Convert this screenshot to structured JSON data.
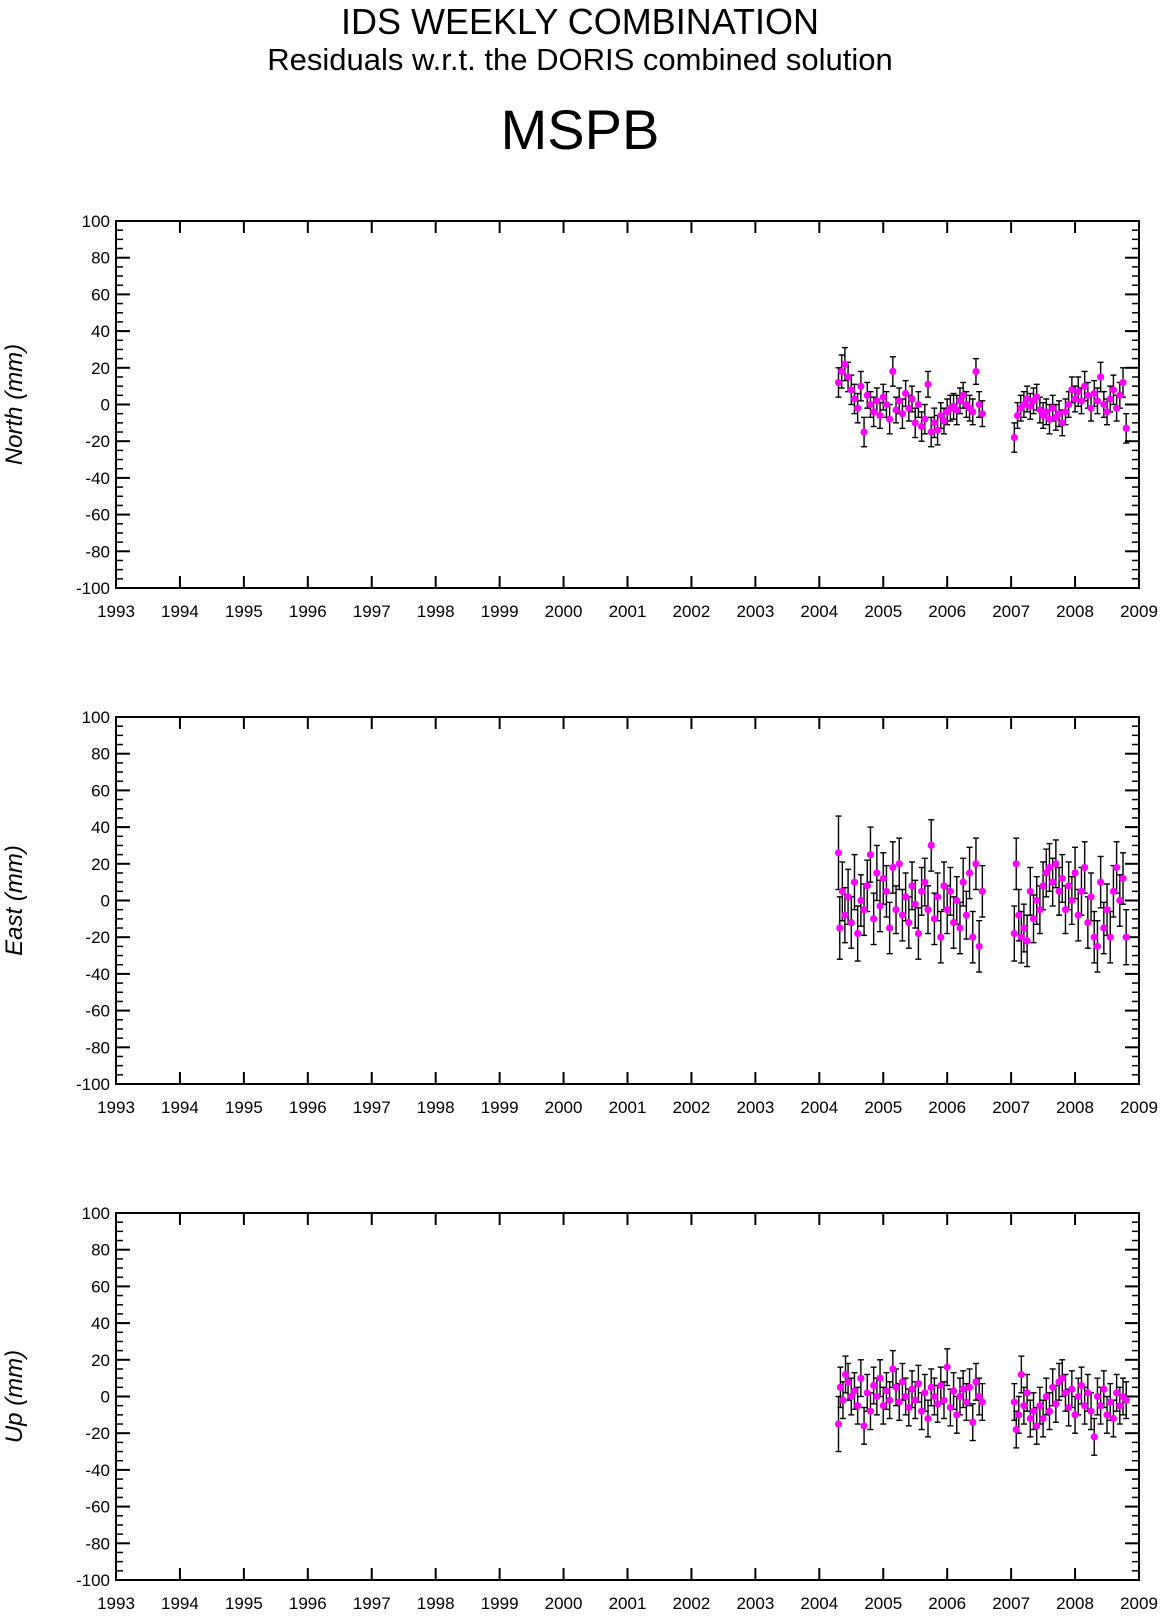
{
  "header": {
    "title": "IDS WEEKLY COMBINATION",
    "subtitle": "Residuals w.r.t. the DORIS combined solution",
    "station": "MSPB"
  },
  "colors": {
    "marker": "#ff00ff",
    "error_bar": "#000000",
    "frame": "#000000"
  },
  "chart_data": [
    {
      "type": "scatter",
      "ylabel": "North (mm)",
      "xlim": [
        1993,
        2009
      ],
      "ylim": [
        -100,
        100
      ],
      "x_ticks": [
        1993,
        1994,
        1995,
        1996,
        1997,
        1998,
        1999,
        2000,
        2001,
        2002,
        2003,
        2004,
        2005,
        2006,
        2007,
        2008,
        2009
      ],
      "y_ticks": [
        100,
        80,
        60,
        40,
        20,
        0,
        -20,
        -40,
        -60,
        -80,
        -100
      ],
      "error_bars": true,
      "points": [
        [
          2004.3,
          12,
          8
        ],
        [
          2004.35,
          18,
          9
        ],
        [
          2004.4,
          22,
          9
        ],
        [
          2004.45,
          15,
          8
        ],
        [
          2004.5,
          8,
          8
        ],
        [
          2004.55,
          3,
          8
        ],
        [
          2004.6,
          -2,
          8
        ],
        [
          2004.65,
          10,
          8
        ],
        [
          2004.7,
          -15,
          8
        ],
        [
          2004.75,
          5,
          7
        ],
        [
          2004.8,
          0,
          7
        ],
        [
          2004.85,
          -4,
          8
        ],
        [
          2004.9,
          2,
          7
        ],
        [
          2004.95,
          -6,
          7
        ],
        [
          2005.0,
          4,
          7
        ],
        [
          2005.05,
          0,
          7
        ],
        [
          2005.1,
          -8,
          8
        ],
        [
          2005.15,
          18,
          8
        ],
        [
          2005.2,
          -3,
          7
        ],
        [
          2005.25,
          2,
          7
        ],
        [
          2005.3,
          -5,
          8
        ],
        [
          2005.35,
          6,
          7
        ],
        [
          2005.4,
          -2,
          7
        ],
        [
          2005.45,
          3,
          7
        ],
        [
          2005.5,
          -10,
          8
        ],
        [
          2005.55,
          0,
          7
        ],
        [
          2005.6,
          -12,
          8
        ],
        [
          2005.65,
          -8,
          8
        ],
        [
          2005.7,
          11,
          7
        ],
        [
          2005.75,
          -15,
          8
        ],
        [
          2005.8,
          -10,
          8
        ],
        [
          2005.85,
          -14,
          8
        ],
        [
          2005.9,
          -6,
          7
        ],
        [
          2005.95,
          -9,
          7
        ],
        [
          2006.0,
          -4,
          7
        ],
        [
          2006.05,
          -2,
          7
        ],
        [
          2006.1,
          -1,
          7
        ],
        [
          2006.15,
          -3,
          8
        ],
        [
          2006.2,
          2,
          7
        ],
        [
          2006.25,
          5,
          7
        ],
        [
          2006.3,
          0,
          7
        ],
        [
          2006.35,
          -2,
          7
        ],
        [
          2006.4,
          -4,
          7
        ],
        [
          2006.45,
          18,
          7
        ],
        [
          2006.5,
          0,
          7
        ],
        [
          2006.55,
          -5,
          7
        ],
        [
          2007.05,
          -18,
          8
        ],
        [
          2007.1,
          -6,
          7
        ],
        [
          2007.15,
          -2,
          7
        ],
        [
          2007.2,
          0,
          7
        ],
        [
          2007.25,
          3,
          7
        ],
        [
          2007.3,
          -1,
          7
        ],
        [
          2007.35,
          2,
          7
        ],
        [
          2007.4,
          4,
          7
        ],
        [
          2007.45,
          -3,
          7
        ],
        [
          2007.5,
          -6,
          7
        ],
        [
          2007.55,
          -4,
          7
        ],
        [
          2007.6,
          -8,
          8
        ],
        [
          2007.65,
          -2,
          7
        ],
        [
          2007.7,
          -7,
          7
        ],
        [
          2007.75,
          -5,
          7
        ],
        [
          2007.8,
          -10,
          7
        ],
        [
          2007.85,
          -4,
          7
        ],
        [
          2007.9,
          0,
          7
        ],
        [
          2007.95,
          8,
          7
        ],
        [
          2008.0,
          3,
          7
        ],
        [
          2008.05,
          7,
          8
        ],
        [
          2008.1,
          2,
          7
        ],
        [
          2008.15,
          10,
          8
        ],
        [
          2008.2,
          5,
          7
        ],
        [
          2008.25,
          -2,
          7
        ],
        [
          2008.3,
          6,
          7
        ],
        [
          2008.35,
          2,
          7
        ],
        [
          2008.4,
          15,
          8
        ],
        [
          2008.45,
          0,
          7
        ],
        [
          2008.5,
          -4,
          7
        ],
        [
          2008.55,
          3,
          7
        ],
        [
          2008.6,
          8,
          8
        ],
        [
          2008.65,
          -2,
          7
        ],
        [
          2008.7,
          5,
          7
        ],
        [
          2008.75,
          12,
          8
        ],
        [
          2008.8,
          -13,
          8
        ]
      ]
    },
    {
      "type": "scatter",
      "ylabel": "East (mm)",
      "xlim": [
        1993,
        2009
      ],
      "ylim": [
        -100,
        100
      ],
      "x_ticks": [
        1993,
        1994,
        1995,
        1996,
        1997,
        1998,
        1999,
        2000,
        2001,
        2002,
        2003,
        2004,
        2005,
        2006,
        2007,
        2008,
        2009
      ],
      "y_ticks": [
        100,
        80,
        60,
        40,
        20,
        0,
        -20,
        -40,
        -60,
        -80,
        -100
      ],
      "error_bars": true,
      "points": [
        [
          2004.3,
          26,
          20
        ],
        [
          2004.32,
          -15,
          17
        ],
        [
          2004.36,
          5,
          16
        ],
        [
          2004.4,
          -8,
          15
        ],
        [
          2004.45,
          2,
          15
        ],
        [
          2004.5,
          -12,
          14
        ],
        [
          2004.55,
          10,
          15
        ],
        [
          2004.6,
          -18,
          15
        ],
        [
          2004.65,
          0,
          14
        ],
        [
          2004.7,
          -5,
          14
        ],
        [
          2004.75,
          8,
          14
        ],
        [
          2004.8,
          25,
          15
        ],
        [
          2004.85,
          -10,
          14
        ],
        [
          2004.9,
          15,
          15
        ],
        [
          2004.95,
          -3,
          14
        ],
        [
          2005.0,
          12,
          14
        ],
        [
          2005.05,
          5,
          14
        ],
        [
          2005.1,
          -15,
          14
        ],
        [
          2005.15,
          18,
          14
        ],
        [
          2005.2,
          -5,
          13
        ],
        [
          2005.25,
          20,
          14
        ],
        [
          2005.3,
          -8,
          14
        ],
        [
          2005.35,
          2,
          13
        ],
        [
          2005.4,
          -12,
          14
        ],
        [
          2005.45,
          8,
          13
        ],
        [
          2005.5,
          -2,
          13
        ],
        [
          2005.55,
          -18,
          14
        ],
        [
          2005.6,
          5,
          13
        ],
        [
          2005.65,
          10,
          13
        ],
        [
          2005.7,
          -5,
          13
        ],
        [
          2005.75,
          30,
          14
        ],
        [
          2005.8,
          -10,
          14
        ],
        [
          2005.85,
          2,
          13
        ],
        [
          2005.9,
          -20,
          14
        ],
        [
          2005.95,
          8,
          13
        ],
        [
          2006.0,
          -5,
          13
        ],
        [
          2006.05,
          5,
          13
        ],
        [
          2006.1,
          -12,
          14
        ],
        [
          2006.15,
          0,
          13
        ],
        [
          2006.2,
          -15,
          14
        ],
        [
          2006.25,
          10,
          13
        ],
        [
          2006.3,
          -8,
          13
        ],
        [
          2006.35,
          15,
          14
        ],
        [
          2006.4,
          -20,
          14
        ],
        [
          2006.45,
          20,
          14
        ],
        [
          2006.5,
          -25,
          14
        ],
        [
          2006.55,
          5,
          14
        ],
        [
          2007.05,
          -18,
          15
        ],
        [
          2007.08,
          20,
          14
        ],
        [
          2007.12,
          -8,
          14
        ],
        [
          2007.16,
          -20,
          14
        ],
        [
          2007.2,
          -15,
          13
        ],
        [
          2007.25,
          -22,
          14
        ],
        [
          2007.3,
          5,
          13
        ],
        [
          2007.35,
          -10,
          13
        ],
        [
          2007.4,
          0,
          13
        ],
        [
          2007.45,
          -5,
          13
        ],
        [
          2007.5,
          8,
          13
        ],
        [
          2007.55,
          15,
          13
        ],
        [
          2007.6,
          18,
          13
        ],
        [
          2007.65,
          10,
          13
        ],
        [
          2007.7,
          20,
          13
        ],
        [
          2007.75,
          5,
          13
        ],
        [
          2007.8,
          12,
          13
        ],
        [
          2007.85,
          -5,
          13
        ],
        [
          2007.9,
          8,
          13
        ],
        [
          2007.95,
          0,
          13
        ],
        [
          2008.0,
          15,
          14
        ],
        [
          2008.05,
          -8,
          14
        ],
        [
          2008.1,
          5,
          13
        ],
        [
          2008.15,
          18,
          14
        ],
        [
          2008.2,
          -12,
          14
        ],
        [
          2008.25,
          2,
          13
        ],
        [
          2008.3,
          -20,
          14
        ],
        [
          2008.35,
          -25,
          14
        ],
        [
          2008.4,
          10,
          14
        ],
        [
          2008.45,
          -15,
          14
        ],
        [
          2008.5,
          -5,
          14
        ],
        [
          2008.55,
          -20,
          14
        ],
        [
          2008.6,
          5,
          14
        ],
        [
          2008.65,
          18,
          14
        ],
        [
          2008.7,
          0,
          14
        ],
        [
          2008.75,
          12,
          14
        ],
        [
          2008.8,
          -20,
          15
        ]
      ]
    },
    {
      "type": "scatter",
      "ylabel": "Up (mm)",
      "xlim": [
        1993,
        2009
      ],
      "ylim": [
        -100,
        100
      ],
      "x_ticks": [
        1993,
        1994,
        1995,
        1996,
        1997,
        1998,
        1999,
        2000,
        2001,
        2002,
        2003,
        2004,
        2005,
        2006,
        2007,
        2008,
        2009
      ],
      "y_ticks": [
        100,
        80,
        60,
        40,
        20,
        0,
        -20,
        -40,
        -60,
        -80,
        -100
      ],
      "error_bars": true,
      "points": [
        [
          2004.3,
          -15,
          15
        ],
        [
          2004.33,
          5,
          11
        ],
        [
          2004.37,
          -2,
          10
        ],
        [
          2004.41,
          12,
          10
        ],
        [
          2004.45,
          8,
          10
        ],
        [
          2004.5,
          0,
          10
        ],
        [
          2004.55,
          3,
          10
        ],
        [
          2004.6,
          -5,
          10
        ],
        [
          2004.65,
          10,
          10
        ],
        [
          2004.7,
          -16,
          10
        ],
        [
          2004.75,
          2,
          10
        ],
        [
          2004.8,
          -8,
          10
        ],
        [
          2004.85,
          6,
          10
        ],
        [
          2004.9,
          0,
          10
        ],
        [
          2004.95,
          10,
          10
        ],
        [
          2005.0,
          -5,
          10
        ],
        [
          2005.05,
          3,
          10
        ],
        [
          2005.1,
          -2,
          10
        ],
        [
          2005.15,
          15,
          10
        ],
        [
          2005.2,
          5,
          10
        ],
        [
          2005.25,
          -3,
          10
        ],
        [
          2005.3,
          8,
          10
        ],
        [
          2005.35,
          0,
          10
        ],
        [
          2005.4,
          -6,
          10
        ],
        [
          2005.45,
          4,
          10
        ],
        [
          2005.5,
          -2,
          10
        ],
        [
          2005.55,
          7,
          10
        ],
        [
          2005.6,
          -8,
          10
        ],
        [
          2005.65,
          2,
          10
        ],
        [
          2005.7,
          -12,
          10
        ],
        [
          2005.75,
          5,
          10
        ],
        [
          2005.8,
          0,
          10
        ],
        [
          2005.85,
          -4,
          10
        ],
        [
          2005.9,
          6,
          10
        ],
        [
          2005.95,
          -2,
          10
        ],
        [
          2006.0,
          16,
          10
        ],
        [
          2006.05,
          -6,
          10
        ],
        [
          2006.1,
          3,
          10
        ],
        [
          2006.15,
          -10,
          10
        ],
        [
          2006.2,
          0,
          10
        ],
        [
          2006.25,
          4,
          10
        ],
        [
          2006.3,
          -3,
          10
        ],
        [
          2006.35,
          5,
          10
        ],
        [
          2006.4,
          -14,
          10
        ],
        [
          2006.45,
          8,
          10
        ],
        [
          2006.5,
          0,
          10
        ],
        [
          2006.55,
          -3,
          10
        ],
        [
          2007.05,
          -3,
          10
        ],
        [
          2007.08,
          -18,
          10
        ],
        [
          2007.12,
          -10,
          10
        ],
        [
          2007.16,
          12,
          10
        ],
        [
          2007.2,
          -5,
          10
        ],
        [
          2007.25,
          2,
          10
        ],
        [
          2007.3,
          -12,
          10
        ],
        [
          2007.35,
          -8,
          10
        ],
        [
          2007.4,
          -16,
          10
        ],
        [
          2007.45,
          -5,
          10
        ],
        [
          2007.5,
          -12,
          10
        ],
        [
          2007.55,
          0,
          10
        ],
        [
          2007.6,
          -8,
          10
        ],
        [
          2007.65,
          5,
          10
        ],
        [
          2007.7,
          -4,
          10
        ],
        [
          2007.75,
          8,
          10
        ],
        [
          2007.8,
          10,
          10
        ],
        [
          2007.85,
          2,
          10
        ],
        [
          2007.9,
          -6,
          10
        ],
        [
          2007.95,
          4,
          10
        ],
        [
          2008.0,
          -10,
          10
        ],
        [
          2008.05,
          0,
          10
        ],
        [
          2008.1,
          6,
          10
        ],
        [
          2008.15,
          -5,
          10
        ],
        [
          2008.2,
          2,
          10
        ],
        [
          2008.25,
          -8,
          10
        ],
        [
          2008.3,
          -22,
          10
        ],
        [
          2008.35,
          0,
          10
        ],
        [
          2008.4,
          -5,
          10
        ],
        [
          2008.45,
          4,
          10
        ],
        [
          2008.5,
          -10,
          10
        ],
        [
          2008.55,
          -3,
          10
        ],
        [
          2008.6,
          -12,
          10
        ],
        [
          2008.65,
          2,
          10
        ],
        [
          2008.7,
          -5,
          10
        ],
        [
          2008.75,
          0,
          10
        ],
        [
          2008.8,
          -2,
          10
        ]
      ]
    }
  ]
}
